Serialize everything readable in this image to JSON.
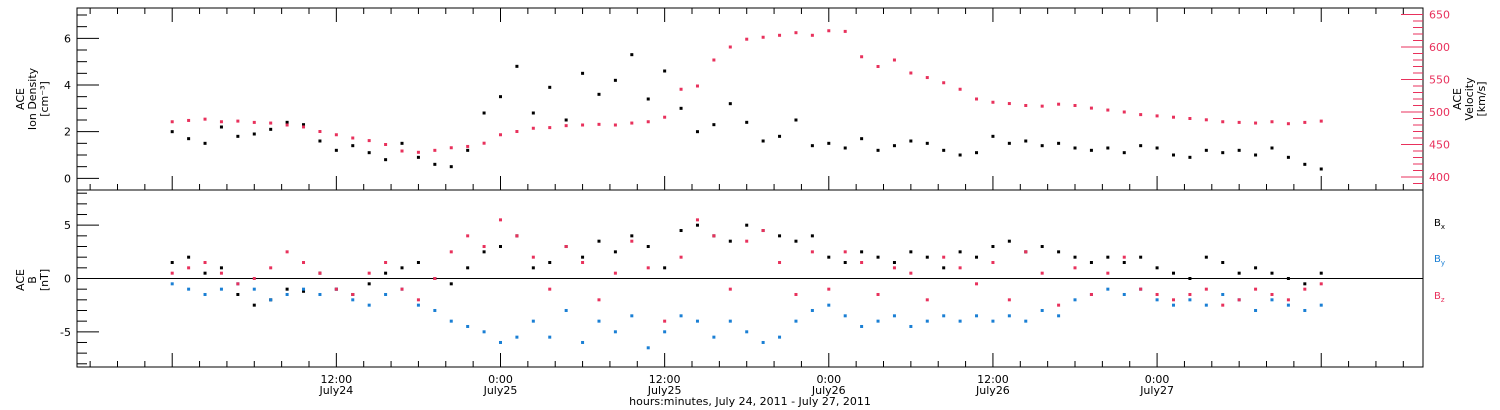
{
  "colors": {
    "black": "#000000",
    "red": "#e8315c",
    "blue": "#1a7fd4"
  },
  "chart_data": [
    {
      "type": "scatter",
      "panel": "top",
      "ylabel_lines": [
        "ACE",
        "Ion Density",
        "[cm⁻³]"
      ],
      "ylabel_right_lines": [
        "ACE",
        "Velocity",
        "[km/s]"
      ],
      "ylim": [
        -0.5,
        7.3
      ],
      "yticks": [
        0,
        2,
        4,
        6
      ],
      "ylim_right": [
        380,
        660
      ],
      "yticks_right": [
        400,
        450,
        500,
        550,
        600,
        650
      ],
      "series": [
        {
          "axis": "left",
          "color": "#000000",
          "x": [
            0.0,
            0.05,
            0.1,
            0.15,
            0.2,
            0.25,
            0.3,
            0.35,
            0.4,
            0.45,
            0.5,
            0.55,
            0.6,
            0.65,
            0.7,
            0.75,
            0.8,
            0.85,
            0.9,
            0.95,
            1.0,
            1.05,
            1.1,
            1.15,
            1.2,
            1.25,
            1.3,
            1.35,
            1.4,
            1.45,
            1.5,
            1.55,
            1.6,
            1.65,
            1.7,
            1.75,
            1.8,
            1.85,
            1.9,
            1.95,
            2.0,
            2.05,
            2.1,
            2.15,
            2.2,
            2.25,
            2.3,
            2.35,
            2.4,
            2.45,
            2.5,
            2.55,
            2.6,
            2.65,
            2.7,
            2.75,
            2.8,
            2.85,
            2.9,
            2.95,
            3.0,
            3.05,
            3.1,
            3.15,
            3.2,
            3.25,
            3.3,
            3.35,
            3.4,
            3.45,
            3.5
          ],
          "y": [
            2.0,
            1.7,
            1.5,
            2.2,
            1.8,
            1.9,
            2.1,
            2.4,
            2.3,
            1.6,
            1.2,
            1.4,
            1.1,
            0.8,
            1.5,
            0.9,
            0.6,
            0.5,
            1.2,
            2.8,
            3.5,
            4.8,
            2.8,
            3.9,
            2.5,
            4.5,
            3.6,
            4.2,
            5.3,
            3.4,
            4.6,
            3.0,
            2.0,
            2.3,
            3.2,
            2.4,
            1.6,
            1.8,
            2.5,
            1.4,
            1.5,
            1.3,
            1.7,
            1.2,
            1.4,
            1.6,
            1.5,
            1.2,
            1.0,
            1.1,
            1.8,
            1.5,
            1.6,
            1.4,
            1.5,
            1.3,
            1.2,
            1.3,
            1.1,
            1.4,
            1.3,
            1.0,
            0.9,
            1.2,
            1.1,
            1.2,
            1.0,
            1.3,
            0.9,
            0.6,
            0.4
          ]
        },
        {
          "axis": "right",
          "color": "#e8315c",
          "x": [
            0.0,
            0.05,
            0.1,
            0.15,
            0.2,
            0.25,
            0.3,
            0.35,
            0.4,
            0.45,
            0.5,
            0.55,
            0.6,
            0.65,
            0.7,
            0.75,
            0.8,
            0.85,
            0.9,
            0.95,
            1.0,
            1.05,
            1.1,
            1.15,
            1.2,
            1.25,
            1.3,
            1.35,
            1.4,
            1.45,
            1.5,
            1.55,
            1.6,
            1.65,
            1.7,
            1.75,
            1.8,
            1.85,
            1.9,
            1.95,
            2.0,
            2.05,
            2.1,
            2.15,
            2.2,
            2.25,
            2.3,
            2.35,
            2.4,
            2.45,
            2.5,
            2.55,
            2.6,
            2.65,
            2.7,
            2.75,
            2.8,
            2.85,
            2.9,
            2.95,
            3.0,
            3.05,
            3.1,
            3.15,
            3.2,
            3.25,
            3.3,
            3.35,
            3.4,
            3.45,
            3.5
          ],
          "y": [
            485,
            487,
            489,
            485,
            486,
            484,
            483,
            480,
            477,
            470,
            465,
            460,
            456,
            450,
            440,
            438,
            441,
            445,
            447,
            452,
            465,
            470,
            475,
            476,
            479,
            480,
            481,
            480,
            483,
            485,
            492,
            535,
            540,
            580,
            600,
            612,
            615,
            618,
            622,
            618,
            625,
            624,
            585,
            570,
            580,
            560,
            553,
            545,
            535,
            520,
            515,
            513,
            510,
            509,
            512,
            510,
            506,
            503,
            500,
            496,
            494,
            492,
            490,
            488,
            485,
            484,
            483,
            485,
            482,
            484,
            486
          ]
        }
      ]
    },
    {
      "type": "scatter",
      "panel": "bottom",
      "ylabel_lines": [
        "ACE",
        "B",
        "[nT]"
      ],
      "ylim": [
        -8.3,
        8.3
      ],
      "yticks": [
        -5,
        0,
        5
      ],
      "xlabel": "hours:minutes, July 24, 2011 - July 27, 2011",
      "xticks": [
        {
          "day": 0.5,
          "time": "12:00",
          "date": "July24"
        },
        {
          "day": 1.0,
          "time": "0:00",
          "date": "July25"
        },
        {
          "day": 1.5,
          "time": "12:00",
          "date": "July25"
        },
        {
          "day": 2.0,
          "time": "0:00",
          "date": "July26"
        },
        {
          "day": 2.5,
          "time": "12:00",
          "date": "July26"
        },
        {
          "day": 3.0,
          "time": "0:00",
          "date": "July27"
        }
      ],
      "series": [
        {
          "name": "Bx",
          "color": "#000000",
          "x": [
            0.0,
            0.05,
            0.1,
            0.15,
            0.2,
            0.25,
            0.3,
            0.35,
            0.4,
            0.45,
            0.5,
            0.55,
            0.6,
            0.65,
            0.7,
            0.75,
            0.8,
            0.85,
            0.9,
            0.95,
            1.0,
            1.05,
            1.1,
            1.15,
            1.2,
            1.25,
            1.3,
            1.35,
            1.4,
            1.45,
            1.5,
            1.55,
            1.6,
            1.65,
            1.7,
            1.75,
            1.8,
            1.85,
            1.9,
            1.95,
            2.0,
            2.05,
            2.1,
            2.15,
            2.2,
            2.25,
            2.3,
            2.35,
            2.4,
            2.45,
            2.5,
            2.55,
            2.6,
            2.65,
            2.7,
            2.75,
            2.8,
            2.85,
            2.9,
            2.95,
            3.0,
            3.05,
            3.1,
            3.15,
            3.2,
            3.25,
            3.3,
            3.35,
            3.4,
            3.45,
            3.5
          ],
          "y": [
            1.5,
            2.0,
            0.5,
            1.0,
            -1.5,
            -2.5,
            -2.0,
            -1.0,
            -1.2,
            0.5,
            -1.0,
            -1.5,
            -0.5,
            0.5,
            1.0,
            1.5,
            0.0,
            -0.5,
            1.0,
            2.5,
            3.0,
            4.0,
            1.0,
            1.5,
            3.0,
            2.0,
            3.5,
            2.5,
            4.0,
            3.0,
            1.0,
            4.5,
            5.0,
            4.0,
            3.5,
            5.0,
            4.5,
            4.0,
            3.5,
            4.0,
            2.0,
            1.5,
            2.5,
            2.0,
            1.5,
            2.5,
            2.0,
            1.0,
            2.5,
            2.0,
            3.0,
            3.5,
            2.5,
            3.0,
            2.5,
            2.0,
            1.5,
            2.0,
            1.5,
            2.0,
            1.0,
            0.5,
            0.0,
            2.0,
            1.5,
            0.5,
            1.0,
            0.5,
            0.0,
            -0.5,
            0.5
          ]
        },
        {
          "name": "By",
          "color": "#1a7fd4",
          "x": [
            0.0,
            0.05,
            0.1,
            0.15,
            0.2,
            0.25,
            0.3,
            0.35,
            0.4,
            0.45,
            0.5,
            0.55,
            0.6,
            0.65,
            0.7,
            0.75,
            0.8,
            0.85,
            0.9,
            0.95,
            1.0,
            1.05,
            1.1,
            1.15,
            1.2,
            1.25,
            1.3,
            1.35,
            1.4,
            1.45,
            1.5,
            1.55,
            1.6,
            1.65,
            1.7,
            1.75,
            1.8,
            1.85,
            1.9,
            1.95,
            2.0,
            2.05,
            2.1,
            2.15,
            2.2,
            2.25,
            2.3,
            2.35,
            2.4,
            2.45,
            2.5,
            2.55,
            2.6,
            2.65,
            2.7,
            2.75,
            2.8,
            2.85,
            2.9,
            2.95,
            3.0,
            3.05,
            3.1,
            3.15,
            3.2,
            3.25,
            3.3,
            3.35,
            3.4,
            3.45,
            3.5
          ],
          "y": [
            -0.5,
            -1.0,
            -1.5,
            -1.0,
            -0.5,
            -1.0,
            -2.0,
            -1.5,
            -1.0,
            -1.5,
            -1.0,
            -2.0,
            -2.5,
            -1.5,
            -1.0,
            -2.5,
            -3.0,
            -4.0,
            -4.5,
            -5.0,
            -6.0,
            -5.5,
            -4.0,
            -5.5,
            -3.0,
            -6.0,
            -4.0,
            -5.0,
            -3.5,
            -6.5,
            -5.0,
            -3.5,
            -4.0,
            -5.5,
            -4.0,
            -5.0,
            -6.0,
            -5.5,
            -4.0,
            -3.0,
            -2.5,
            -3.5,
            -4.5,
            -4.0,
            -3.5,
            -4.5,
            -4.0,
            -3.5,
            -4.0,
            -3.5,
            -4.0,
            -3.5,
            -4.0,
            -3.0,
            -3.5,
            -2.0,
            -1.5,
            -1.0,
            -1.5,
            -1.0,
            -2.0,
            -2.5,
            -2.0,
            -2.5,
            -1.5,
            -2.0,
            -3.0,
            -2.0,
            -2.5,
            -3.0,
            -2.5
          ]
        },
        {
          "name": "Bz",
          "color": "#e8315c",
          "x": [
            0.0,
            0.05,
            0.1,
            0.15,
            0.2,
            0.25,
            0.3,
            0.35,
            0.4,
            0.45,
            0.5,
            0.55,
            0.6,
            0.65,
            0.7,
            0.75,
            0.8,
            0.85,
            0.9,
            0.95,
            1.0,
            1.05,
            1.1,
            1.15,
            1.2,
            1.25,
            1.3,
            1.35,
            1.4,
            1.45,
            1.5,
            1.55,
            1.6,
            1.65,
            1.7,
            1.75,
            1.8,
            1.85,
            1.9,
            1.95,
            2.0,
            2.05,
            2.1,
            2.15,
            2.2,
            2.25,
            2.3,
            2.35,
            2.4,
            2.45,
            2.5,
            2.55,
            2.6,
            2.65,
            2.7,
            2.75,
            2.8,
            2.85,
            2.9,
            2.95,
            3.0,
            3.05,
            3.1,
            3.15,
            3.2,
            3.25,
            3.3,
            3.35,
            3.4,
            3.45,
            3.5
          ],
          "y": [
            0.5,
            1.0,
            1.5,
            0.5,
            -0.5,
            0.0,
            1.0,
            2.5,
            1.5,
            0.5,
            -1.0,
            -1.5,
            0.5,
            1.5,
            -1.0,
            -2.0,
            0.0,
            2.5,
            4.0,
            3.0,
            5.5,
            4.0,
            2.0,
            -1.0,
            3.0,
            1.5,
            -2.0,
            0.5,
            3.5,
            1.0,
            -4.0,
            2.0,
            5.5,
            4.0,
            -1.0,
            3.5,
            4.5,
            1.5,
            -1.5,
            2.5,
            -1.0,
            2.5,
            1.5,
            -1.5,
            1.0,
            0.5,
            -2.0,
            2.0,
            1.0,
            -0.5,
            1.5,
            -2.0,
            2.5,
            0.5,
            -2.5,
            1.0,
            -1.5,
            0.5,
            2.0,
            -1.0,
            -1.5,
            -2.0,
            -1.5,
            -1.0,
            -2.5,
            -2.0,
            -1.0,
            -1.5,
            -2.0,
            -1.0,
            -0.5
          ]
        }
      ],
      "legend": [
        {
          "base": "B",
          "sub": "x",
          "color": "#000000"
        },
        {
          "base": "B",
          "sub": "y",
          "color": "#1a7fd4"
        },
        {
          "base": "B",
          "sub": "z",
          "color": "#e8315c"
        }
      ]
    }
  ]
}
